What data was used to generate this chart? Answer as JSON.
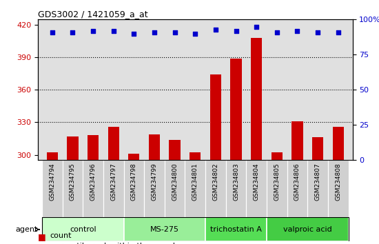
{
  "title": "GDS3002 / 1421059_a_at",
  "samples": [
    "GSM234794",
    "GSM234795",
    "GSM234796",
    "GSM234797",
    "GSM234798",
    "GSM234799",
    "GSM234800",
    "GSM234801",
    "GSM234802",
    "GSM234803",
    "GSM234804",
    "GSM234805",
    "GSM234806",
    "GSM234807",
    "GSM234808"
  ],
  "counts": [
    302,
    317,
    318,
    326,
    301,
    319,
    314,
    302,
    374,
    389,
    408,
    302,
    331,
    316,
    326
  ],
  "percentiles": [
    91,
    91,
    92,
    92,
    90,
    91,
    91,
    90,
    93,
    92,
    95,
    91,
    92,
    91,
    91
  ],
  "ylim_left": [
    295,
    425
  ],
  "ylim_right": [
    0,
    100
  ],
  "yticks_left": [
    300,
    330,
    360,
    390,
    420
  ],
  "yticks_right": [
    0,
    25,
    50,
    75,
    100
  ],
  "gridlines": [
    330,
    360,
    390
  ],
  "groups": [
    {
      "label": "control",
      "start": 0,
      "end": 3,
      "color": "#ccffcc"
    },
    {
      "label": "MS-275",
      "start": 4,
      "end": 7,
      "color": "#99ee99"
    },
    {
      "label": "trichostatin A",
      "start": 8,
      "end": 10,
      "color": "#55dd55"
    },
    {
      "label": "valproic acid",
      "start": 11,
      "end": 14,
      "color": "#44cc44"
    }
  ],
  "bar_color": "#cc0000",
  "dot_color": "#0000cc",
  "bar_width": 0.55,
  "plot_bg_color": "#e0e0e0",
  "tick_bg_color": "#d0d0d0"
}
